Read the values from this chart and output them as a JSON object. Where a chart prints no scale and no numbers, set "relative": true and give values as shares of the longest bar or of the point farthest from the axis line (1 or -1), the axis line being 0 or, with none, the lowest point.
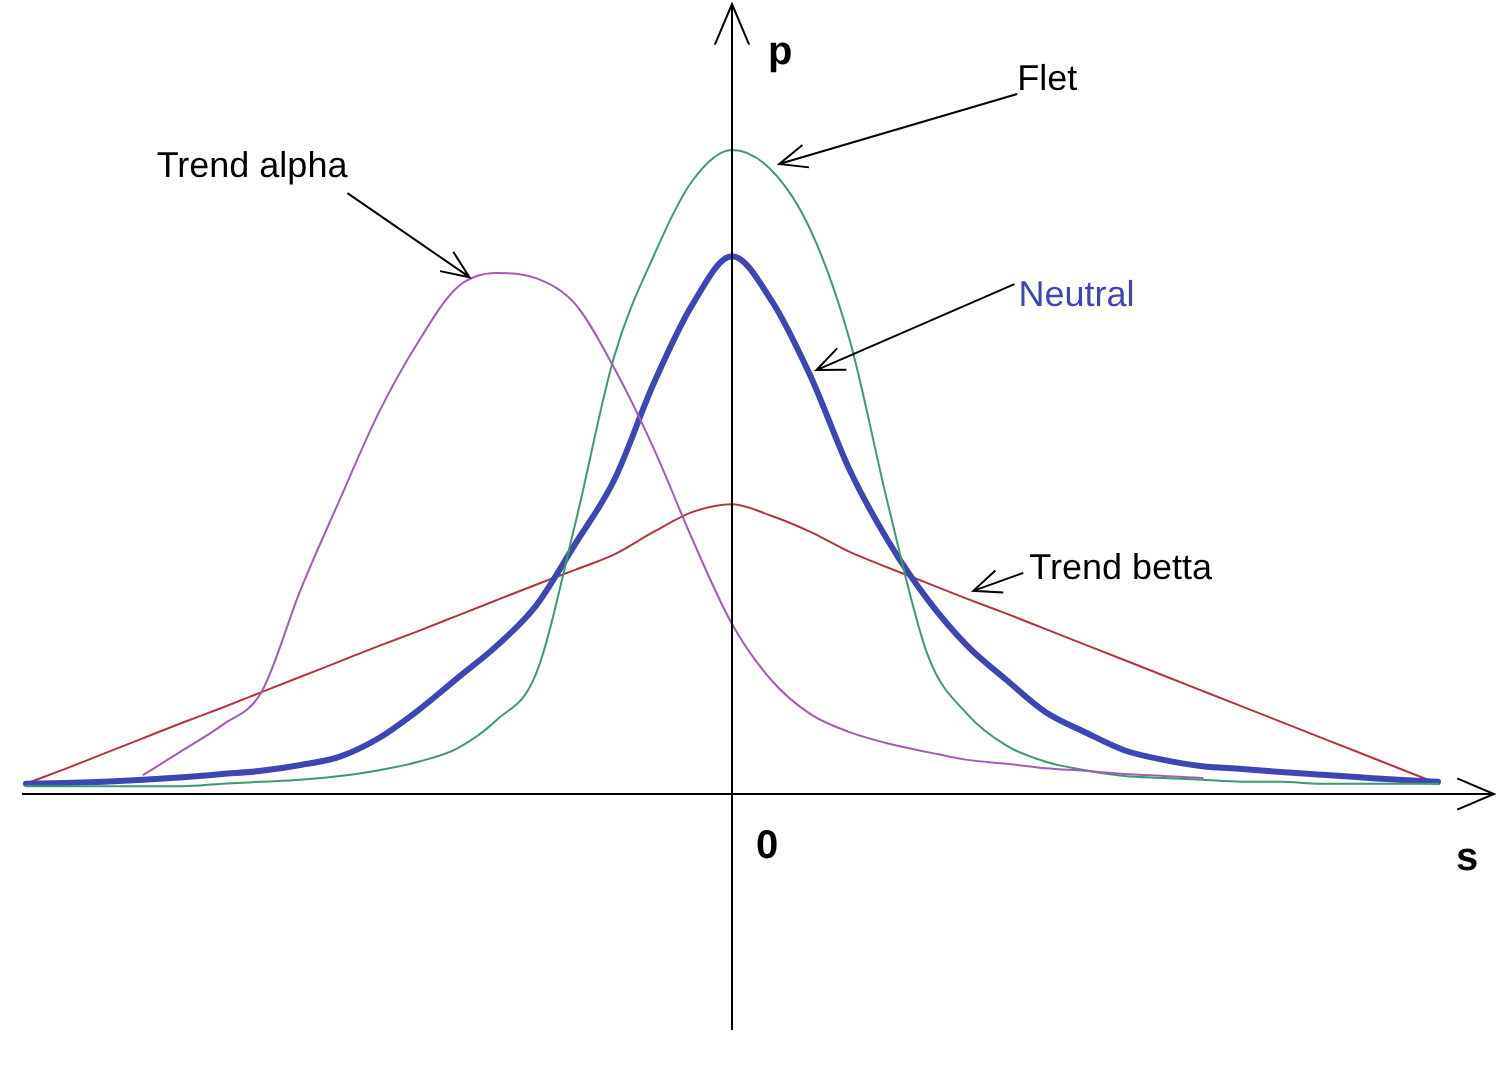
{
  "chart_data": {
    "type": "line",
    "relative": true,
    "xlabel": "s",
    "ylabel": "p",
    "annotations": [
      "0"
    ],
    "categories": [
      null,
      null,
      null,
      null,
      null,
      null,
      null,
      null,
      null,
      null,
      null,
      null,
      null,
      null,
      null,
      null,
      null,
      null,
      null,
      null,
      null,
      null,
      null,
      null,
      null,
      null,
      null,
      null,
      null,
      null,
      null,
      null,
      null,
      null,
      null,
      null,
      null
    ],
    "series": [
      {
        "name": "Trend alpha",
        "color": "#a35cb5",
        "values": [
          null,
          null,
          null,
          0.03,
          0.068,
          0.107,
          0.158,
          0.317,
          0.457,
          0.593,
          0.702,
          0.787,
          0.809,
          0.801,
          0.761,
          0.661,
          0.537,
          0.394,
          0.264,
          0.177,
          0.124,
          0.096,
          0.078,
          0.065,
          0.053,
          0.047,
          0.04,
          0.036,
          0.031,
          0.028,
          0.025,
          null,
          null,
          null,
          null,
          null,
          null
        ]
      },
      {
        "name": "Flet",
        "color": "#3d9b6b",
        "values": [
          0.012,
          0.012,
          0.012,
          0.012,
          0.012,
          0.016,
          0.019,
          0.022,
          0.028,
          0.037,
          0.05,
          0.071,
          0.115,
          0.186,
          0.419,
          0.68,
          0.835,
          0.953,
          1,
          0.969,
          0.876,
          0.705,
          0.444,
          0.214,
          0.124,
          0.075,
          0.05,
          0.037,
          0.028,
          0.025,
          0.022,
          0.019,
          0.019,
          0.016,
          0.016,
          0.016,
          0.016
        ]
      },
      {
        "name": "Neutral",
        "color": "#3c46b4",
        "values": [
          0.016,
          0.017,
          0.019,
          0.022,
          0.026,
          0.031,
          0.036,
          0.045,
          0.058,
          0.087,
          0.13,
          0.18,
          0.23,
          0.292,
          0.388,
          0.488,
          0.637,
          0.761,
          0.835,
          0.767,
          0.649,
          0.503,
          0.391,
          0.301,
          0.23,
          0.177,
          0.127,
          0.096,
          0.068,
          0.053,
          0.043,
          0.039,
          0.034,
          0.03,
          0.026,
          0.022,
          0.019
        ]
      },
      {
        "name": "Trend betta",
        "color": "#b8323c",
        "values": [
          0.016,
          0.039,
          0.063,
          0.087,
          0.111,
          0.134,
          0.158,
          0.182,
          0.206,
          0.23,
          0.253,
          0.277,
          0.301,
          0.325,
          0.348,
          0.372,
          0.407,
          0.438,
          0.45,
          0.432,
          0.407,
          0.376,
          0.351,
          0.327,
          0.303,
          0.28,
          0.256,
          0.232,
          0.208,
          0.184,
          0.16,
          0.136,
          0.112,
          0.088,
          0.064,
          0.04,
          0.016
        ]
      }
    ],
    "legend": false,
    "grid": false,
    "marker": "none"
  }
}
